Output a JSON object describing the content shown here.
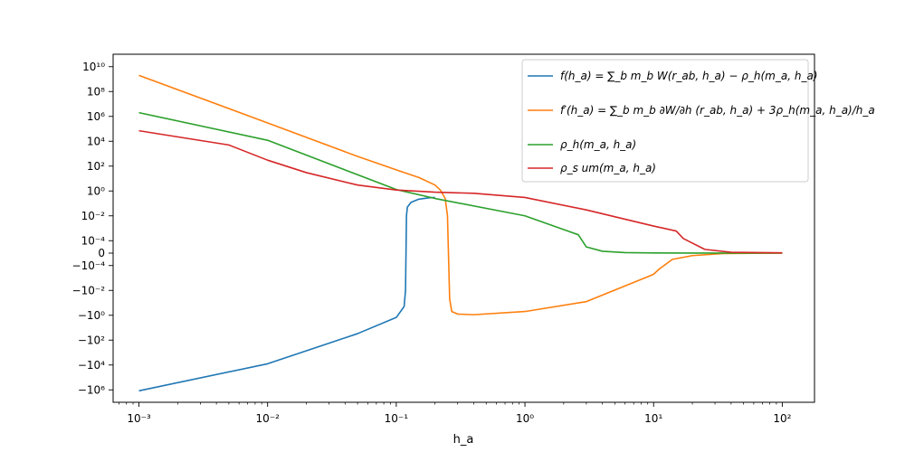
{
  "chart_data": {
    "type": "line",
    "xlabel": "h_a",
    "ylabel": "",
    "title": "",
    "xscale": "log",
    "yscale": "symlog",
    "xlim": [
      0.00063,
      178
    ],
    "ylim": [
      -10000000.0,
      100000000000.0
    ],
    "grid": false,
    "legend_position": "top-right",
    "x_ticks": [
      {
        "value": 0.001,
        "label": "10⁻³"
      },
      {
        "value": 0.01,
        "label": "10⁻²"
      },
      {
        "value": 0.1,
        "label": "10⁻¹"
      },
      {
        "value": 1,
        "label": "10⁰"
      },
      {
        "value": 10,
        "label": "10¹"
      },
      {
        "value": 100,
        "label": "10²"
      }
    ],
    "y_ticks": [
      {
        "value": 10000000000.0,
        "label": "10¹⁰"
      },
      {
        "value": 100000000.0,
        "label": "10⁸"
      },
      {
        "value": 1000000.0,
        "label": "10⁶"
      },
      {
        "value": 10000.0,
        "label": "10⁴"
      },
      {
        "value": 100,
        "label": "10²"
      },
      {
        "value": 1,
        "label": "10⁰"
      },
      {
        "value": 0.01,
        "label": "10⁻²"
      },
      {
        "value": 0.0001,
        "label": "10⁻⁴"
      },
      {
        "value": 0,
        "label": "0"
      },
      {
        "value": -0.0001,
        "label": "−10⁻⁴"
      },
      {
        "value": -0.01,
        "label": "−10⁻²"
      },
      {
        "value": -1,
        "label": "−10⁰"
      },
      {
        "value": -100,
        "label": "−10²"
      },
      {
        "value": -10000.0,
        "label": "−10⁴"
      },
      {
        "value": -1000000.0,
        "label": "−10⁶"
      }
    ],
    "series": [
      {
        "name": "f(h_a) = ∑_b m_b W(r_ab, h_a) − ρ_h(m_a, h_a)",
        "color": "#1f77b4",
        "points": [
          [
            0.001,
            -1200000.0
          ],
          [
            0.01,
            -8000
          ],
          [
            0.05,
            -30
          ],
          [
            0.1,
            -1.5
          ],
          [
            0.115,
            -0.2
          ],
          [
            0.118,
            -0.01
          ],
          [
            0.12,
            0.01
          ],
          [
            0.122,
            0.05
          ],
          [
            0.13,
            0.12
          ],
          [
            0.15,
            0.22
          ],
          [
            0.18,
            0.28
          ],
          [
            0.2,
            0.3
          ]
        ]
      },
      {
        "name": "f′(h_a) = ∑_b m_b ∂W/∂h (r_ab, h_a) + 3ρ_h(m_a, h_a)/h_a",
        "color": "#ff7f0e",
        "points": [
          [
            0.001,
            2000000000.0
          ],
          [
            0.01,
            300000.0
          ],
          [
            0.05,
            600
          ],
          [
            0.1,
            50
          ],
          [
            0.15,
            12
          ],
          [
            0.2,
            3
          ],
          [
            0.22,
            1.2
          ],
          [
            0.24,
            0.25
          ],
          [
            0.25,
            0.01
          ],
          [
            0.26,
            -0.05
          ],
          [
            0.27,
            -0.5
          ],
          [
            0.3,
            -0.8
          ],
          [
            0.4,
            -0.9
          ],
          [
            1,
            -0.5
          ],
          [
            3,
            -0.08
          ],
          [
            9,
            -0.0008
          ],
          [
            10,
            -0.0005
          ],
          [
            11,
            -0.0002
          ],
          [
            14,
            -5e-05
          ],
          [
            20,
            -2e-05
          ],
          [
            35,
            -3e-06
          ],
          [
            100,
            0
          ]
        ]
      },
      {
        "name": "ρ_h(m_a, h_a)",
        "color": "#2ca02c",
        "points": [
          [
            0.001,
            2000000.0
          ],
          [
            0.01,
            12000.0
          ],
          [
            0.1,
            1.3
          ],
          [
            0.2,
            0.25
          ],
          [
            1,
            0.01
          ],
          [
            2.6,
            0.0003
          ],
          [
            3,
            5e-05
          ],
          [
            4,
            1.5e-05
          ],
          [
            6,
            4e-06
          ],
          [
            10,
            1e-06
          ],
          [
            20,
            2e-07
          ],
          [
            100,
            0
          ]
        ]
      },
      {
        "name": "ρ_s um(m_a, h_a)",
        "color": "#d62728",
        "points": [
          [
            0.001,
            70000.0
          ],
          [
            0.005,
            5000
          ],
          [
            0.01,
            300
          ],
          [
            0.02,
            30
          ],
          [
            0.05,
            3
          ],
          [
            0.1,
            1.2
          ],
          [
            0.2,
            0.8
          ],
          [
            0.4,
            0.65
          ],
          [
            1,
            0.3
          ],
          [
            3,
            0.03
          ],
          [
            10,
            0.0015
          ],
          [
            15,
            0.0006
          ],
          [
            17,
            0.00015
          ],
          [
            25,
            3e-05
          ],
          [
            40,
            7e-06
          ],
          [
            100,
            2e-06
          ]
        ]
      }
    ]
  }
}
